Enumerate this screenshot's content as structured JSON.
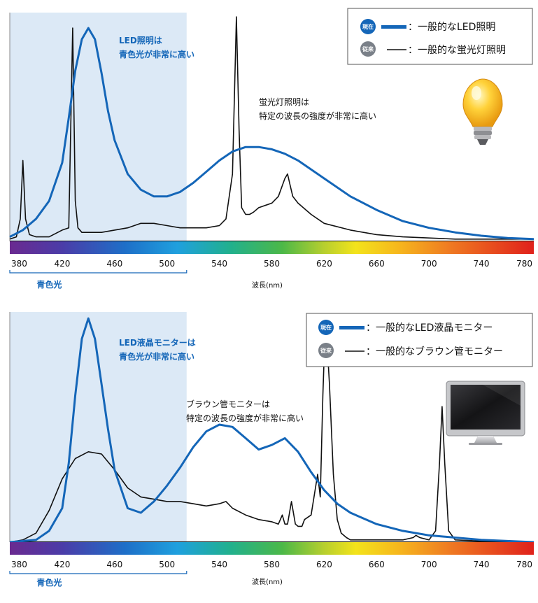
{
  "colors": {
    "led": "#1466b8",
    "legacy": "#111111",
    "blue_region": "#dce9f6",
    "badge_now": "#1466b8",
    "badge_old": "#7a8088"
  },
  "icons": {
    "top": "lightbulb-icon",
    "bottom": "monitor-icon"
  },
  "chart_data": [
    {
      "type": "line",
      "xlabel": "波長(nm)",
      "x_ticks": [
        380,
        420,
        460,
        500,
        540,
        580,
        620,
        660,
        700,
        740,
        780
      ],
      "xlim": [
        380,
        780
      ],
      "ylim": [
        0,
        1
      ],
      "blue_range": {
        "label": "青色光",
        "from": 380,
        "to": 515
      },
      "legend": [
        {
          "badge": "現在",
          "text": "：一般的なLED照明",
          "style": "thick-blue"
        },
        {
          "badge": "従来",
          "text": "：一般的な蛍光灯照明",
          "style": "thin-black"
        }
      ],
      "annotations": [
        {
          "lines": [
            "LED照明は",
            "青色光が非常に高い"
          ],
          "style": "blue"
        },
        {
          "lines": [
            "蛍光灯照明は",
            "特定の波長の強度が非常に高い"
          ],
          "style": "black"
        }
      ],
      "series": [
        {
          "key": "led",
          "x": [
            380,
            390,
            400,
            410,
            420,
            425,
            430,
            435,
            440,
            445,
            450,
            455,
            460,
            470,
            480,
            490,
            500,
            510,
            520,
            530,
            540,
            550,
            560,
            570,
            580,
            590,
            600,
            620,
            640,
            660,
            680,
            700,
            720,
            740,
            760,
            780
          ],
          "y": [
            0.02,
            0.05,
            0.1,
            0.18,
            0.35,
            0.55,
            0.76,
            0.9,
            0.95,
            0.9,
            0.75,
            0.58,
            0.45,
            0.3,
            0.23,
            0.2,
            0.2,
            0.22,
            0.26,
            0.31,
            0.36,
            0.4,
            0.42,
            0.42,
            0.41,
            0.39,
            0.36,
            0.28,
            0.2,
            0.14,
            0.09,
            0.06,
            0.04,
            0.025,
            0.015,
            0.01
          ]
        },
        {
          "key": "legacy",
          "x": [
            380,
            385,
            388,
            390,
            392,
            395,
            400,
            410,
            420,
            425,
            428,
            430,
            432,
            435,
            440,
            450,
            460,
            470,
            480,
            490,
            500,
            510,
            520,
            530,
            540,
            545,
            550,
            553,
            555,
            557,
            560,
            563,
            566,
            570,
            580,
            585,
            590,
            592,
            594,
            596,
            600,
            610,
            620,
            640,
            660,
            680,
            700,
            720,
            740,
            760,
            780
          ],
          "y": [
            0.01,
            0.02,
            0.1,
            0.36,
            0.1,
            0.03,
            0.02,
            0.02,
            0.05,
            0.06,
            0.95,
            0.18,
            0.06,
            0.04,
            0.04,
            0.04,
            0.05,
            0.06,
            0.08,
            0.08,
            0.07,
            0.06,
            0.06,
            0.06,
            0.07,
            0.1,
            0.3,
            1.0,
            0.5,
            0.15,
            0.12,
            0.12,
            0.13,
            0.15,
            0.17,
            0.2,
            0.28,
            0.3,
            0.25,
            0.2,
            0.17,
            0.12,
            0.08,
            0.05,
            0.03,
            0.02,
            0.015,
            0.01,
            0.01,
            0.01,
            0.01
          ]
        }
      ]
    },
    {
      "type": "line",
      "xlabel": "波長(nm)",
      "x_ticks": [
        380,
        420,
        460,
        500,
        540,
        580,
        620,
        660,
        700,
        740,
        780
      ],
      "xlim": [
        380,
        780
      ],
      "ylim": [
        0,
        1
      ],
      "blue_range": {
        "label": "青色光",
        "from": 380,
        "to": 515
      },
      "legend": [
        {
          "badge": "現在",
          "text": "：一般的なLED液晶モニター",
          "style": "thick-blue"
        },
        {
          "badge": "従来",
          "text": "：一般的なブラウン管モニター",
          "style": "thin-black"
        }
      ],
      "annotations": [
        {
          "lines": [
            "LED液晶モニターは",
            "青色光が非常に高い"
          ],
          "style": "blue"
        },
        {
          "lines": [
            "ブラウン管モニターは",
            "特定の波長の強度が非常に高い"
          ],
          "style": "black"
        }
      ],
      "series": [
        {
          "key": "led",
          "x": [
            380,
            400,
            410,
            420,
            425,
            430,
            435,
            440,
            445,
            450,
            455,
            460,
            470,
            480,
            490,
            500,
            510,
            520,
            530,
            540,
            550,
            560,
            570,
            580,
            590,
            600,
            610,
            620,
            630,
            640,
            660,
            680,
            700,
            720,
            740,
            760,
            780
          ],
          "y": [
            0.0,
            0.01,
            0.05,
            0.15,
            0.35,
            0.65,
            0.9,
            0.99,
            0.9,
            0.7,
            0.5,
            0.32,
            0.15,
            0.13,
            0.18,
            0.25,
            0.33,
            0.42,
            0.49,
            0.52,
            0.51,
            0.46,
            0.41,
            0.43,
            0.46,
            0.4,
            0.31,
            0.23,
            0.17,
            0.13,
            0.08,
            0.05,
            0.03,
            0.02,
            0.01,
            0.005,
            0.0
          ]
        },
        {
          "key": "legacy",
          "x": [
            380,
            390,
            400,
            410,
            420,
            430,
            440,
            450,
            460,
            470,
            480,
            490,
            500,
            510,
            520,
            530,
            540,
            545,
            550,
            560,
            570,
            580,
            585,
            588,
            590,
            592,
            595,
            598,
            600,
            603,
            605,
            610,
            615,
            617,
            619,
            621,
            624,
            627,
            630,
            633,
            637,
            640,
            650,
            660,
            680,
            688,
            690,
            693,
            700,
            705,
            708,
            710,
            712,
            715,
            720,
            740,
            760,
            780
          ],
          "y": [
            0.0,
            0.01,
            0.04,
            0.14,
            0.28,
            0.37,
            0.4,
            0.39,
            0.32,
            0.24,
            0.2,
            0.19,
            0.18,
            0.18,
            0.17,
            0.16,
            0.17,
            0.18,
            0.15,
            0.12,
            0.1,
            0.09,
            0.08,
            0.12,
            0.08,
            0.08,
            0.18,
            0.08,
            0.07,
            0.07,
            0.1,
            0.12,
            0.3,
            0.2,
            0.65,
            1.0,
            0.7,
            0.3,
            0.1,
            0.04,
            0.02,
            0.01,
            0.01,
            0.01,
            0.01,
            0.02,
            0.03,
            0.02,
            0.01,
            0.05,
            0.35,
            0.6,
            0.35,
            0.05,
            0.01,
            0.005,
            0.0,
            0.0
          ]
        }
      ]
    }
  ]
}
